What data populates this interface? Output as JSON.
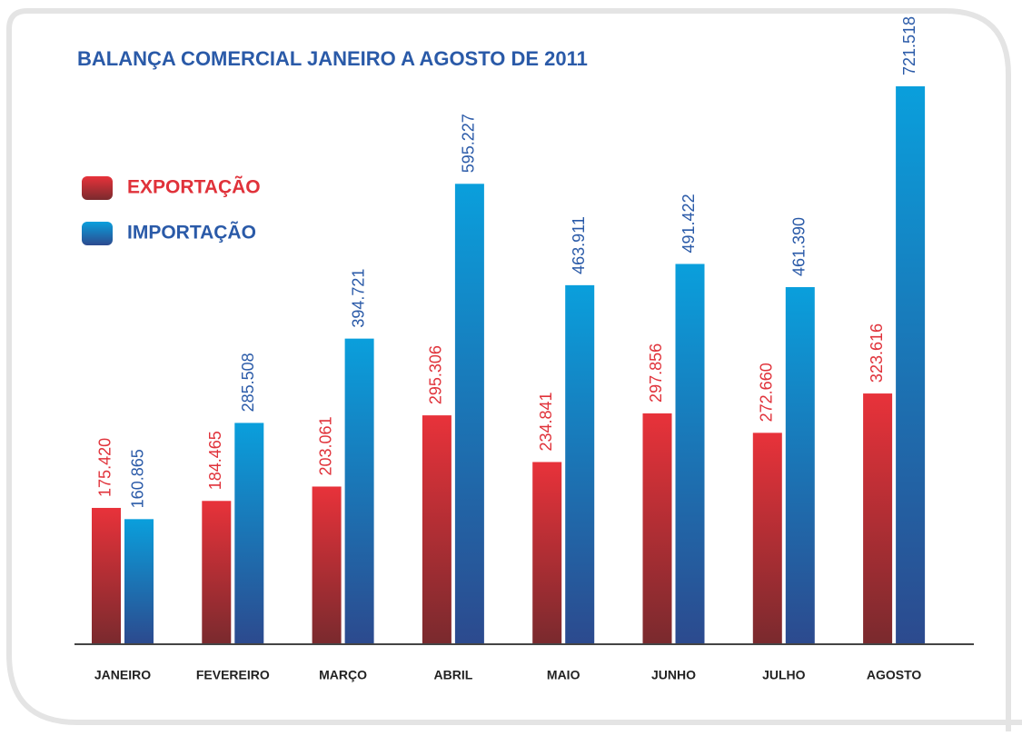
{
  "chart_data": {
    "type": "bar",
    "title": "BALANÇA COMERCIAL JANEIRO A AGOSTO DE 2011",
    "categories": [
      "JANEIRO",
      "FEVEREIRO",
      "MARÇO",
      "ABRIL",
      "MAIO",
      "JUNHO",
      "JULHO",
      "AGOSTO"
    ],
    "series": [
      {
        "name": "EXPORTAÇÃO",
        "color": "#e8323a",
        "values": [
          175420,
          184465,
          203061,
          295306,
          234841,
          297856,
          272660,
          323616
        ],
        "value_labels": [
          "175.420",
          "184.465",
          "203.061",
          "295.306",
          "234.841",
          "297.856",
          "272.660",
          "323.616"
        ]
      },
      {
        "name": "IMPORTAÇÃO",
        "color": "#0a9fdc",
        "values": [
          160865,
          285508,
          394721,
          595227,
          463911,
          491422,
          461390,
          721518
        ],
        "value_labels": [
          "160.865",
          "285.508",
          "394.721",
          "595.227",
          "463.911",
          "491.422",
          "461.390",
          "721.518"
        ]
      }
    ],
    "legend": "upper left"
  }
}
